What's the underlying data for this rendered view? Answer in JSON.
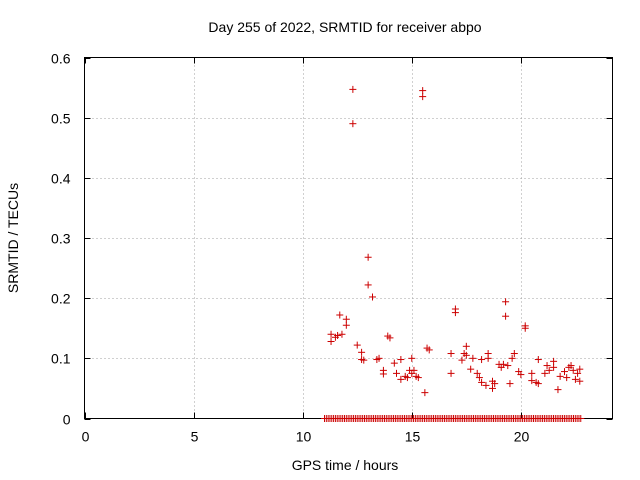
{
  "chart_data": {
    "type": "scatter",
    "title": "Day 255 of 2022, SRMTID for receiver abpo",
    "xlabel": "GPS time / hours",
    "ylabel": "SRMTID / TECUs",
    "xlim": [
      0,
      24.2
    ],
    "ylim": [
      0,
      0.6
    ],
    "xticks": [
      0,
      5,
      10,
      15,
      20
    ],
    "xtick_labels": [
      "0",
      "5",
      "10",
      "15",
      "20"
    ],
    "yticks": [
      0,
      0.1,
      0.2,
      0.3,
      0.4,
      0.5,
      0.6
    ],
    "ytick_labels": [
      "0",
      "0.1",
      "0.2",
      "0.3",
      "0.4",
      "0.5",
      "0.6"
    ],
    "grid": true,
    "marker": "+",
    "color": "#cc0000",
    "zero_points": {
      "x_start": 11.0,
      "x_end": 22.8,
      "step": 0.0833
    },
    "series": [
      {
        "name": "SRMTID",
        "x": [
          11.3,
          11.3,
          11.5,
          11.6,
          11.7,
          11.8,
          12.0,
          12.0,
          12.3,
          12.3,
          12.5,
          12.7,
          12.7,
          12.8,
          13.0,
          13.0,
          13.2,
          13.4,
          13.5,
          13.7,
          13.7,
          13.9,
          14.0,
          14.2,
          14.3,
          14.5,
          14.5,
          14.7,
          14.8,
          14.9,
          15.0,
          15.0,
          15.1,
          15.2,
          15.3,
          15.5,
          15.5,
          15.6,
          15.7,
          15.8,
          16.8,
          16.8,
          17.0,
          17.0,
          17.3,
          17.4,
          17.5,
          17.5,
          17.7,
          17.8,
          18.0,
          18.1,
          18.2,
          18.2,
          18.4,
          18.5,
          18.5,
          18.7,
          18.7,
          18.8,
          19.0,
          19.1,
          19.2,
          19.3,
          19.3,
          19.4,
          19.5,
          19.6,
          19.7,
          19.9,
          20.0,
          20.2,
          20.2,
          20.5,
          20.5,
          20.7,
          20.8,
          20.8,
          21.1,
          21.2,
          21.3,
          21.5,
          21.5,
          21.7,
          21.8,
          22.0,
          22.1,
          22.2,
          22.3,
          22.4,
          22.5,
          22.6,
          22.7,
          22.7
        ],
        "y": [
          0.14,
          0.128,
          0.135,
          0.138,
          0.172,
          0.14,
          0.165,
          0.155,
          0.547,
          0.49,
          0.122,
          0.11,
          0.098,
          0.097,
          0.268,
          0.222,
          0.202,
          0.098,
          0.1,
          0.08,
          0.074,
          0.137,
          0.134,
          0.092,
          0.075,
          0.098,
          0.065,
          0.07,
          0.068,
          0.08,
          0.1,
          0.075,
          0.08,
          0.07,
          0.068,
          0.545,
          0.535,
          0.043,
          0.117,
          0.114,
          0.108,
          0.075,
          0.182,
          0.176,
          0.097,
          0.108,
          0.12,
          0.105,
          0.082,
          0.1,
          0.075,
          0.068,
          0.098,
          0.06,
          0.055,
          0.108,
          0.1,
          0.062,
          0.05,
          0.058,
          0.09,
          0.085,
          0.09,
          0.194,
          0.17,
          0.088,
          0.058,
          0.1,
          0.108,
          0.078,
          0.073,
          0.154,
          0.15,
          0.075,
          0.063,
          0.06,
          0.098,
          0.058,
          0.075,
          0.088,
          0.08,
          0.095,
          0.085,
          0.048,
          0.07,
          0.078,
          0.068,
          0.085,
          0.088,
          0.08,
          0.065,
          0.075,
          0.082,
          0.062
        ]
      }
    ]
  }
}
